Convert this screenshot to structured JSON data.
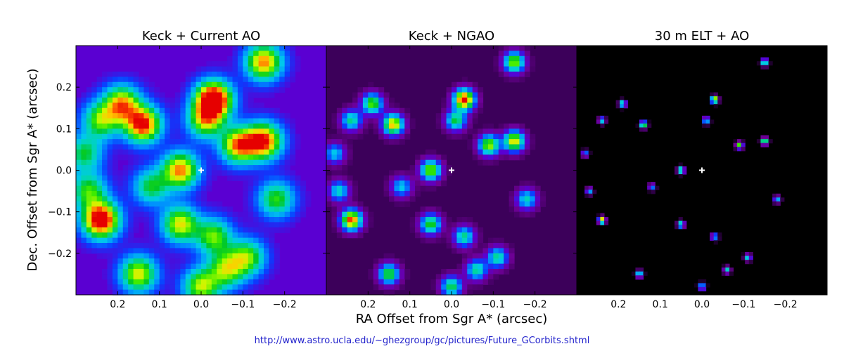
{
  "chart_data": {
    "type": "heatmap",
    "colormap": "nipy_spectral",
    "background_levels": [
      0.2,
      0.05,
      0.0
    ],
    "xlabel": "RA Offset from Sgr A* (arcsec)",
    "ylabel": "Dec. Offset from Sgr A* (arcsec)",
    "xlim": [
      0.3,
      -0.3
    ],
    "ylim": [
      -0.3,
      0.3
    ],
    "x_ticks": [
      0.2,
      0.1,
      0.0,
      -0.1,
      -0.2
    ],
    "x_tick_labels": [
      "0.2",
      "0.1",
      "0.0",
      "−0.1",
      "−0.2"
    ],
    "y_ticks": [
      0.2,
      0.1,
      0.0,
      -0.1,
      -0.2
    ],
    "y_tick_labels": [
      "0.2",
      "0.1",
      "0.0",
      "−0.1",
      "−0.2"
    ],
    "sgr_a_star": {
      "ra": 0.0,
      "dec": 0.0,
      "marker": "+",
      "color": "#ffffff"
    },
    "panels": [
      {
        "title": "Keck + Current AO"
      },
      {
        "title": "Keck + NGAO"
      },
      {
        "title": "30 m ELT + AO"
      }
    ],
    "stars": [
      {
        "ra": 0.24,
        "dec": 0.12,
        "peak": 0.5
      },
      {
        "ra": 0.19,
        "dec": 0.16,
        "peak": 0.65
      },
      {
        "ra": 0.14,
        "dec": 0.11,
        "peak": 0.82
      },
      {
        "ra": -0.03,
        "dec": 0.17,
        "peak": 1.0
      },
      {
        "ra": -0.15,
        "dec": 0.26,
        "peak": 0.7
      },
      {
        "ra": -0.09,
        "dec": 0.06,
        "peak": 0.7
      },
      {
        "ra": -0.15,
        "dec": 0.07,
        "peak": 0.78
      },
      {
        "ra": 0.05,
        "dec": 0.0,
        "peak": 0.7
      },
      {
        "ra": -0.01,
        "dec": 0.12,
        "peak": 0.55
      },
      {
        "ra": 0.27,
        "dec": -0.05,
        "peak": 0.45
      },
      {
        "ra": 0.24,
        "dec": -0.12,
        "peak": 0.92
      },
      {
        "ra": 0.15,
        "dec": -0.25,
        "peak": 0.6
      },
      {
        "ra": 0.05,
        "dec": -0.13,
        "peak": 0.6
      },
      {
        "ra": -0.06,
        "dec": -0.24,
        "peak": 0.5
      },
      {
        "ra": -0.11,
        "dec": -0.21,
        "peak": 0.5
      },
      {
        "ra": -0.03,
        "dec": -0.16,
        "peak": 0.5
      },
      {
        "ra": -0.18,
        "dec": -0.07,
        "peak": 0.45
      },
      {
        "ra": 0.0,
        "dec": -0.28,
        "peak": 0.55
      },
      {
        "ra": 0.12,
        "dec": -0.04,
        "peak": 0.4
      },
      {
        "ra": 0.28,
        "dec": 0.04,
        "peak": 0.4
      }
    ]
  },
  "footer": {
    "url": "http://www.astro.ucla.edu/~ghezgroup/gc/pictures/Future_GCorbits.shtml"
  }
}
